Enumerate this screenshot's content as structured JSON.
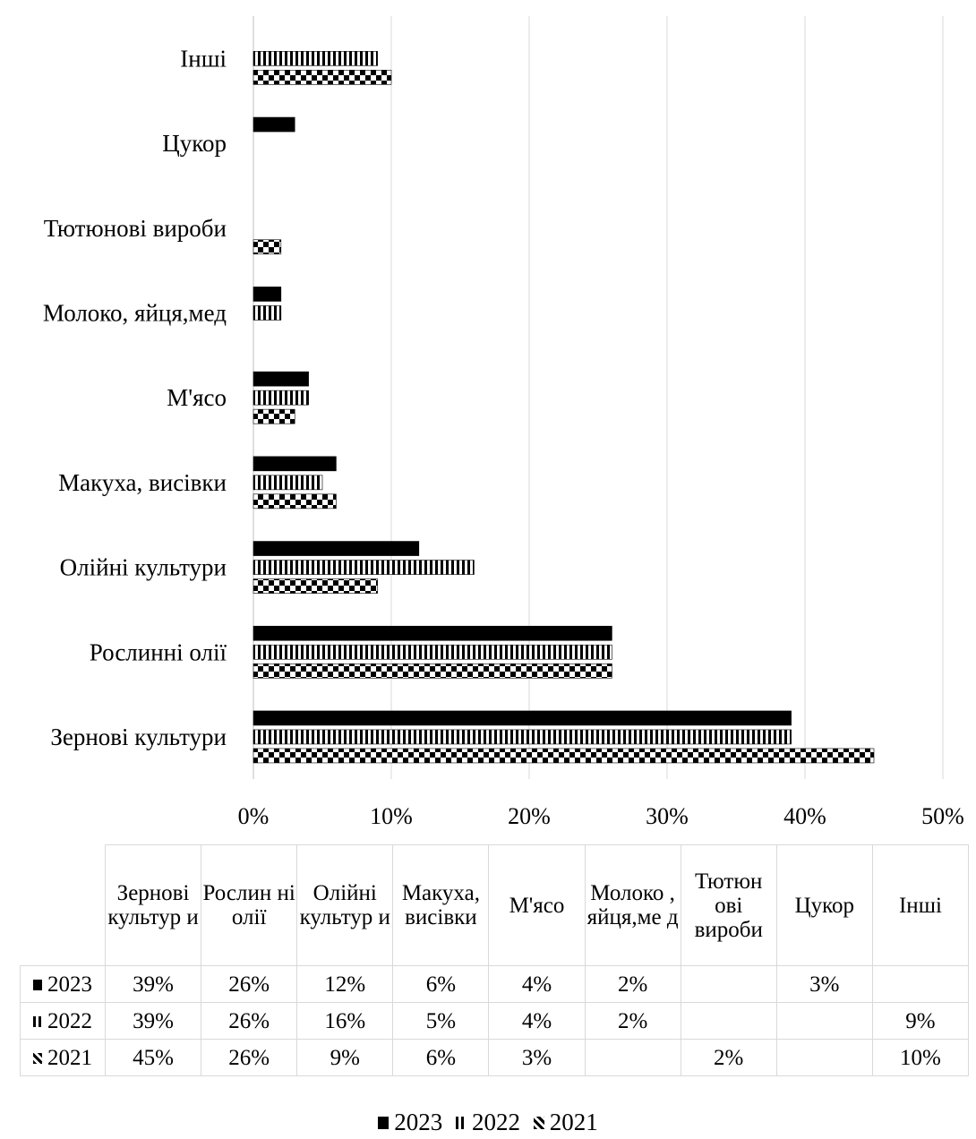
{
  "chart_data": {
    "type": "bar",
    "orientation": "horizontal",
    "categories": [
      "Зернові культури",
      "Рослинні олії",
      "Олійні культури",
      "Макуха, висівки",
      "М'ясо",
      "Молоко, яйця,мед",
      "Тютюнові вироби",
      "Цукор",
      "Інші"
    ],
    "table_headers": [
      "Зернові культур и",
      "Рослин ні олії",
      "Олійні культур и",
      "Макуха, висівки",
      "М'ясо",
      "Молоко , яйця,ме д",
      "Тютюн ові вироби",
      "Цукор",
      "Інші"
    ],
    "series": [
      {
        "name": "2023",
        "values": [
          39,
          26,
          12,
          6,
          4,
          2,
          null,
          3,
          null
        ],
        "display": [
          "39%",
          "26%",
          "12%",
          "6%",
          "4%",
          "2%",
          "",
          "3%",
          ""
        ]
      },
      {
        "name": "2022",
        "values": [
          39,
          26,
          16,
          5,
          4,
          2,
          null,
          null,
          9
        ],
        "display": [
          "39%",
          "26%",
          "16%",
          "5%",
          "4%",
          "2%",
          "",
          "",
          "9%"
        ]
      },
      {
        "name": "2021",
        "values": [
          45,
          26,
          9,
          6,
          3,
          null,
          2,
          null,
          10
        ],
        "display": [
          "45%",
          "26%",
          "9%",
          "6%",
          "3%",
          "",
          "2%",
          "",
          "10%"
        ]
      }
    ],
    "xlim": [
      0,
      50
    ],
    "x_ticks": [
      "0%",
      "10%",
      "20%",
      "30%",
      "40%",
      "50%"
    ],
    "grid": true,
    "legend_position": "bottom",
    "colors": {
      "2023": "#000000",
      "2022": "#000000",
      "2021": "#000000",
      "grid": "#d9d9d9"
    }
  }
}
